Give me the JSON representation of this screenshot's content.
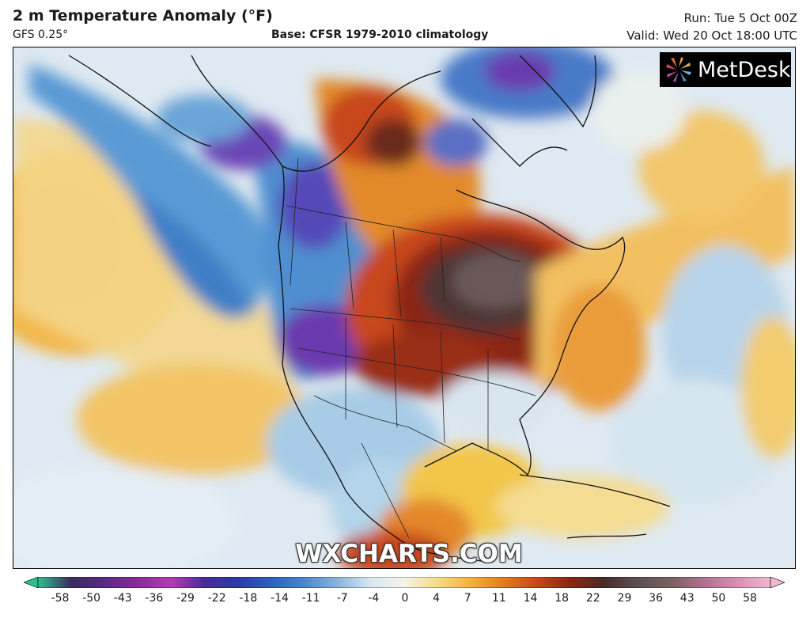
{
  "header": {
    "title": "2 m Temperature Anomaly (°F)",
    "model": "GFS 0.25°",
    "base": "Base: CFSR 1979-2010 climatology",
    "run": "Run: Tue 5 Oct 00Z",
    "valid": "Valid: Wed 20 Oct 18:00 UTC"
  },
  "logo": {
    "text": "MetDesk",
    "icon": "metdesk-star-icon"
  },
  "watermark": "WXCHARTS.COM",
  "colorbar": {
    "ticks": [
      "-58",
      "-50",
      "-43",
      "-36",
      "-29",
      "-22",
      "-18",
      "-14",
      "-11",
      "-7",
      "-4",
      "0",
      "4",
      "7",
      "11",
      "14",
      "18",
      "22",
      "29",
      "36",
      "43",
      "50",
      "58"
    ],
    "colors": [
      "#2fbf8f",
      "#3a2b5e",
      "#5a2a86",
      "#8a2a9a",
      "#b43cb4",
      "#4a2a9a",
      "#2a3aa8",
      "#2f5fbf",
      "#4a86cc",
      "#8ab4dc",
      "#d8e8f2",
      "#f4f4ea",
      "#f6dc82",
      "#f2b23a",
      "#e47a1a",
      "#c8461a",
      "#8a2612",
      "#4a2a26",
      "#5a5050",
      "#7a6060",
      "#b07090",
      "#d890b0",
      "#f0b8d0"
    ],
    "arrow_left": "#2fbf8f",
    "arrow_right": "#f0b8d0"
  }
}
